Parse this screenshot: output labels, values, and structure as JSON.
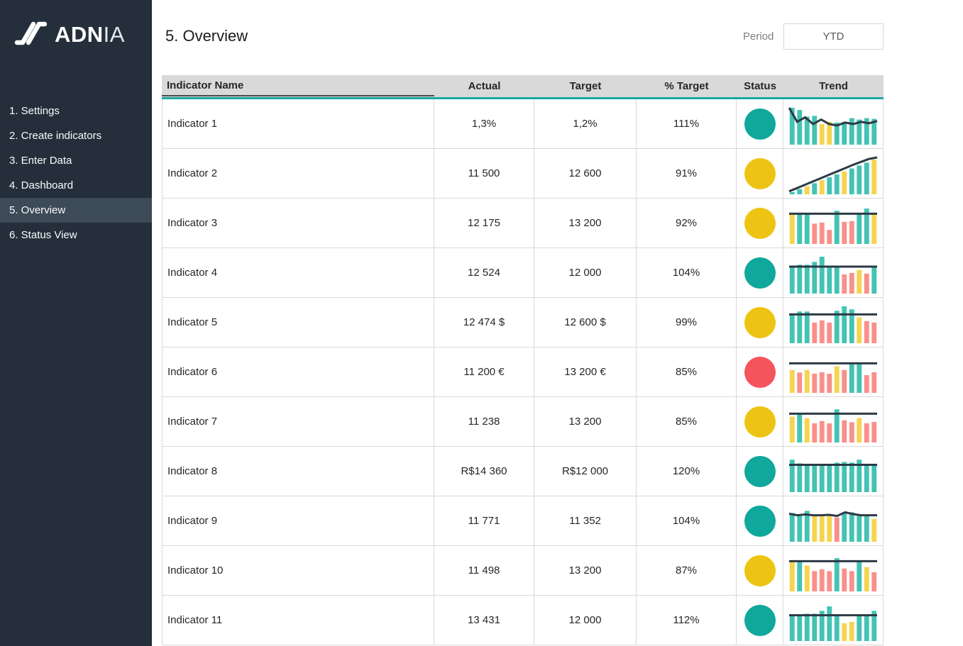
{
  "sidebar": {
    "logo": {
      "text_bold": "ADN",
      "text_light": "IA"
    },
    "items": [
      {
        "label": "1. Settings",
        "active": false
      },
      {
        "label": "2. Create indicators",
        "active": false
      },
      {
        "label": "3. Enter Data",
        "active": false
      },
      {
        "label": "4. Dashboard",
        "active": false
      },
      {
        "label": "5. Overview",
        "active": true
      },
      {
        "label": "6. Status View",
        "active": false
      }
    ]
  },
  "header": {
    "title": "5. Overview",
    "period_label": "Period",
    "period_value": "YTD"
  },
  "table": {
    "columns": [
      "Indicator Name",
      "Actual",
      "Target",
      "% Target",
      "Status",
      "Trend"
    ],
    "rows": [
      {
        "name": "Indicator 1",
        "actual": "1,3%",
        "target": "1,2%",
        "pct": "111%",
        "status": "green",
        "trend": {
          "bars": [
            [
              1.0,
              "t"
            ],
            [
              0.94,
              "t"
            ],
            [
              0.76,
              "t"
            ],
            [
              0.78,
              "t"
            ],
            [
              0.56,
              "y"
            ],
            [
              0.62,
              "y"
            ],
            [
              0.6,
              "t"
            ],
            [
              0.62,
              "t"
            ],
            [
              0.72,
              "t"
            ],
            [
              0.68,
              "t"
            ],
            [
              0.72,
              "t"
            ],
            [
              0.7,
              "t"
            ]
          ],
          "line": [
            1.0,
            0.62,
            0.74,
            0.56,
            0.68,
            0.56,
            0.52,
            0.6,
            0.56,
            0.62,
            0.58,
            0.64
          ]
        }
      },
      {
        "name": "Indicator 2",
        "actual": "11 500",
        "target": "12 600",
        "pct": "91%",
        "status": "yellow",
        "trend": {
          "bars": [
            [
              0.06,
              "t"
            ],
            [
              0.14,
              "t"
            ],
            [
              0.22,
              "y"
            ],
            [
              0.3,
              "t"
            ],
            [
              0.38,
              "y"
            ],
            [
              0.46,
              "t"
            ],
            [
              0.54,
              "t"
            ],
            [
              0.62,
              "y"
            ],
            [
              0.7,
              "t"
            ],
            [
              0.78,
              "t"
            ],
            [
              0.86,
              "t"
            ],
            [
              0.94,
              "y"
            ]
          ],
          "line": [
            0.08,
            0.17,
            0.26,
            0.35,
            0.44,
            0.53,
            0.62,
            0.71,
            0.8,
            0.88,
            0.96,
            1.0
          ]
        }
      },
      {
        "name": "Indicator 3",
        "actual": "12 175",
        "target": "13 200",
        "pct": "92%",
        "status": "yellow",
        "trend": {
          "bars": [
            [
              0.8,
              "y"
            ],
            [
              0.82,
              "t"
            ],
            [
              0.82,
              "t"
            ],
            [
              0.55,
              "r"
            ],
            [
              0.58,
              "r"
            ],
            [
              0.38,
              "r"
            ],
            [
              0.9,
              "t"
            ],
            [
              0.6,
              "r"
            ],
            [
              0.62,
              "r"
            ],
            [
              0.8,
              "t"
            ],
            [
              0.96,
              "t"
            ],
            [
              0.8,
              "y"
            ]
          ],
          "line": [
            0.82,
            0.82,
            0.82,
            0.82,
            0.82,
            0.82,
            0.82,
            0.82,
            0.82,
            0.82,
            0.82,
            0.82
          ]
        }
      },
      {
        "name": "Indicator 4",
        "actual": "12 524",
        "target": "12 000",
        "pct": "104%",
        "status": "green",
        "trend": {
          "bars": [
            [
              0.74,
              "t"
            ],
            [
              0.78,
              "t"
            ],
            [
              0.78,
              "t"
            ],
            [
              0.86,
              "t"
            ],
            [
              1.0,
              "t"
            ],
            [
              0.76,
              "t"
            ],
            [
              0.74,
              "t"
            ],
            [
              0.52,
              "r"
            ],
            [
              0.56,
              "r"
            ],
            [
              0.64,
              "y"
            ],
            [
              0.54,
              "r"
            ],
            [
              0.73,
              "t"
            ]
          ],
          "line": [
            0.73,
            0.73,
            0.73,
            0.73,
            0.73,
            0.73,
            0.73,
            0.73,
            0.73,
            0.73,
            0.73,
            0.73
          ]
        }
      },
      {
        "name": "Indicator 5",
        "actual": "12 474 $",
        "target": "12 600 $",
        "pct": "99%",
        "status": "yellow",
        "trend": {
          "bars": [
            [
              0.78,
              "t"
            ],
            [
              0.86,
              "t"
            ],
            [
              0.86,
              "t"
            ],
            [
              0.56,
              "r"
            ],
            [
              0.62,
              "r"
            ],
            [
              0.56,
              "r"
            ],
            [
              0.88,
              "t"
            ],
            [
              1.0,
              "t"
            ],
            [
              0.92,
              "t"
            ],
            [
              0.7,
              "y"
            ],
            [
              0.6,
              "r"
            ],
            [
              0.56,
              "r"
            ]
          ],
          "line": [
            0.78,
            0.78,
            0.78,
            0.78,
            0.78,
            0.78,
            0.78,
            0.78,
            0.78,
            0.78,
            0.78,
            0.78
          ]
        }
      },
      {
        "name": "Indicator 6",
        "actual": "11 200 €",
        "target": "13 200 €",
        "pct": "85%",
        "status": "red",
        "trend": {
          "bars": [
            [
              0.62,
              "y"
            ],
            [
              0.55,
              "r"
            ],
            [
              0.62,
              "y"
            ],
            [
              0.52,
              "r"
            ],
            [
              0.56,
              "r"
            ],
            [
              0.52,
              "r"
            ],
            [
              0.72,
              "y"
            ],
            [
              0.62,
              "r"
            ],
            [
              0.8,
              "t"
            ],
            [
              0.8,
              "t"
            ],
            [
              0.48,
              "r"
            ],
            [
              0.56,
              "r"
            ]
          ],
          "line": [
            0.8,
            0.8,
            0.8,
            0.8,
            0.8,
            0.8,
            0.8,
            0.8,
            0.8,
            0.8,
            0.8,
            0.8
          ]
        }
      },
      {
        "name": "Indicator 7",
        "actual": "11 238",
        "target": "13 200",
        "pct": "85%",
        "status": "yellow",
        "trend": {
          "bars": [
            [
              0.7,
              "y"
            ],
            [
              0.8,
              "t"
            ],
            [
              0.66,
              "y"
            ],
            [
              0.52,
              "r"
            ],
            [
              0.58,
              "r"
            ],
            [
              0.52,
              "r"
            ],
            [
              0.9,
              "t"
            ],
            [
              0.6,
              "r"
            ],
            [
              0.55,
              "r"
            ],
            [
              0.66,
              "y"
            ],
            [
              0.52,
              "r"
            ],
            [
              0.56,
              "r"
            ]
          ],
          "line": [
            0.78,
            0.78,
            0.78,
            0.78,
            0.78,
            0.78,
            0.78,
            0.78,
            0.78,
            0.78,
            0.78,
            0.78
          ]
        }
      },
      {
        "name": "Indicator 8",
        "actual": "R$14 360",
        "target": "R$12 000",
        "pct": "120%",
        "status": "green",
        "trend": {
          "bars": [
            [
              0.88,
              "t"
            ],
            [
              0.78,
              "t"
            ],
            [
              0.74,
              "t"
            ],
            [
              0.74,
              "t"
            ],
            [
              0.74,
              "t"
            ],
            [
              0.76,
              "t"
            ],
            [
              0.8,
              "t"
            ],
            [
              0.82,
              "t"
            ],
            [
              0.8,
              "t"
            ],
            [
              0.88,
              "t"
            ],
            [
              0.76,
              "t"
            ],
            [
              0.74,
              "t"
            ]
          ],
          "line": [
            0.74,
            0.74,
            0.74,
            0.74,
            0.74,
            0.74,
            0.74,
            0.74,
            0.74,
            0.74,
            0.74,
            0.74
          ]
        }
      },
      {
        "name": "Indicator 9",
        "actual": "11 771",
        "target": "11 352",
        "pct": "104%",
        "status": "green",
        "trend": {
          "bars": [
            [
              0.78,
              "t"
            ],
            [
              0.72,
              "t"
            ],
            [
              0.84,
              "t"
            ],
            [
              0.72,
              "y"
            ],
            [
              0.72,
              "y"
            ],
            [
              0.72,
              "y"
            ],
            [
              0.66,
              "r"
            ],
            [
              0.8,
              "t"
            ],
            [
              0.8,
              "t"
            ],
            [
              0.72,
              "t"
            ],
            [
              0.72,
              "t"
            ],
            [
              0.62,
              "y"
            ]
          ],
          "line": [
            0.76,
            0.72,
            0.74,
            0.72,
            0.72,
            0.73,
            0.7,
            0.8,
            0.75,
            0.72,
            0.72,
            0.72
          ]
        }
      },
      {
        "name": "Indicator 10",
        "actual": "11 498",
        "target": "13 200",
        "pct": "87%",
        "status": "yellow",
        "trend": {
          "bars": [
            [
              0.8,
              "y"
            ],
            [
              0.82,
              "t"
            ],
            [
              0.7,
              "y"
            ],
            [
              0.55,
              "r"
            ],
            [
              0.6,
              "r"
            ],
            [
              0.55,
              "r"
            ],
            [
              0.9,
              "t"
            ],
            [
              0.62,
              "r"
            ],
            [
              0.55,
              "r"
            ],
            [
              0.8,
              "t"
            ],
            [
              0.66,
              "y"
            ],
            [
              0.52,
              "r"
            ]
          ],
          "line": [
            0.82,
            0.82,
            0.82,
            0.82,
            0.82,
            0.82,
            0.82,
            0.82,
            0.82,
            0.82,
            0.82,
            0.82
          ]
        }
      },
      {
        "name": "Indicator 11",
        "actual": "13 431",
        "target": "12 000",
        "pct": "112%",
        "status": "green",
        "trend": {
          "bars": [
            [
              0.72,
              "t"
            ],
            [
              0.72,
              "t"
            ],
            [
              0.74,
              "t"
            ],
            [
              0.74,
              "t"
            ],
            [
              0.82,
              "t"
            ],
            [
              0.94,
              "t"
            ],
            [
              0.7,
              "t"
            ],
            [
              0.48,
              "y"
            ],
            [
              0.52,
              "y"
            ],
            [
              0.7,
              "t"
            ],
            [
              0.72,
              "t"
            ],
            [
              0.82,
              "t"
            ]
          ],
          "line": [
            0.7,
            0.7,
            0.7,
            0.7,
            0.7,
            0.7,
            0.7,
            0.7,
            0.7,
            0.7,
            0.7,
            0.7
          ]
        }
      }
    ]
  },
  "colors": {
    "status": {
      "green": "#10a79c",
      "yellow": "#edc413",
      "red": "#f4555c"
    },
    "bars": {
      "t": "#44c3b3",
      "y": "#f5d44f",
      "r": "#f9908a"
    },
    "trend_line": "#2c3a46",
    "accent": "#1ba8a2"
  }
}
